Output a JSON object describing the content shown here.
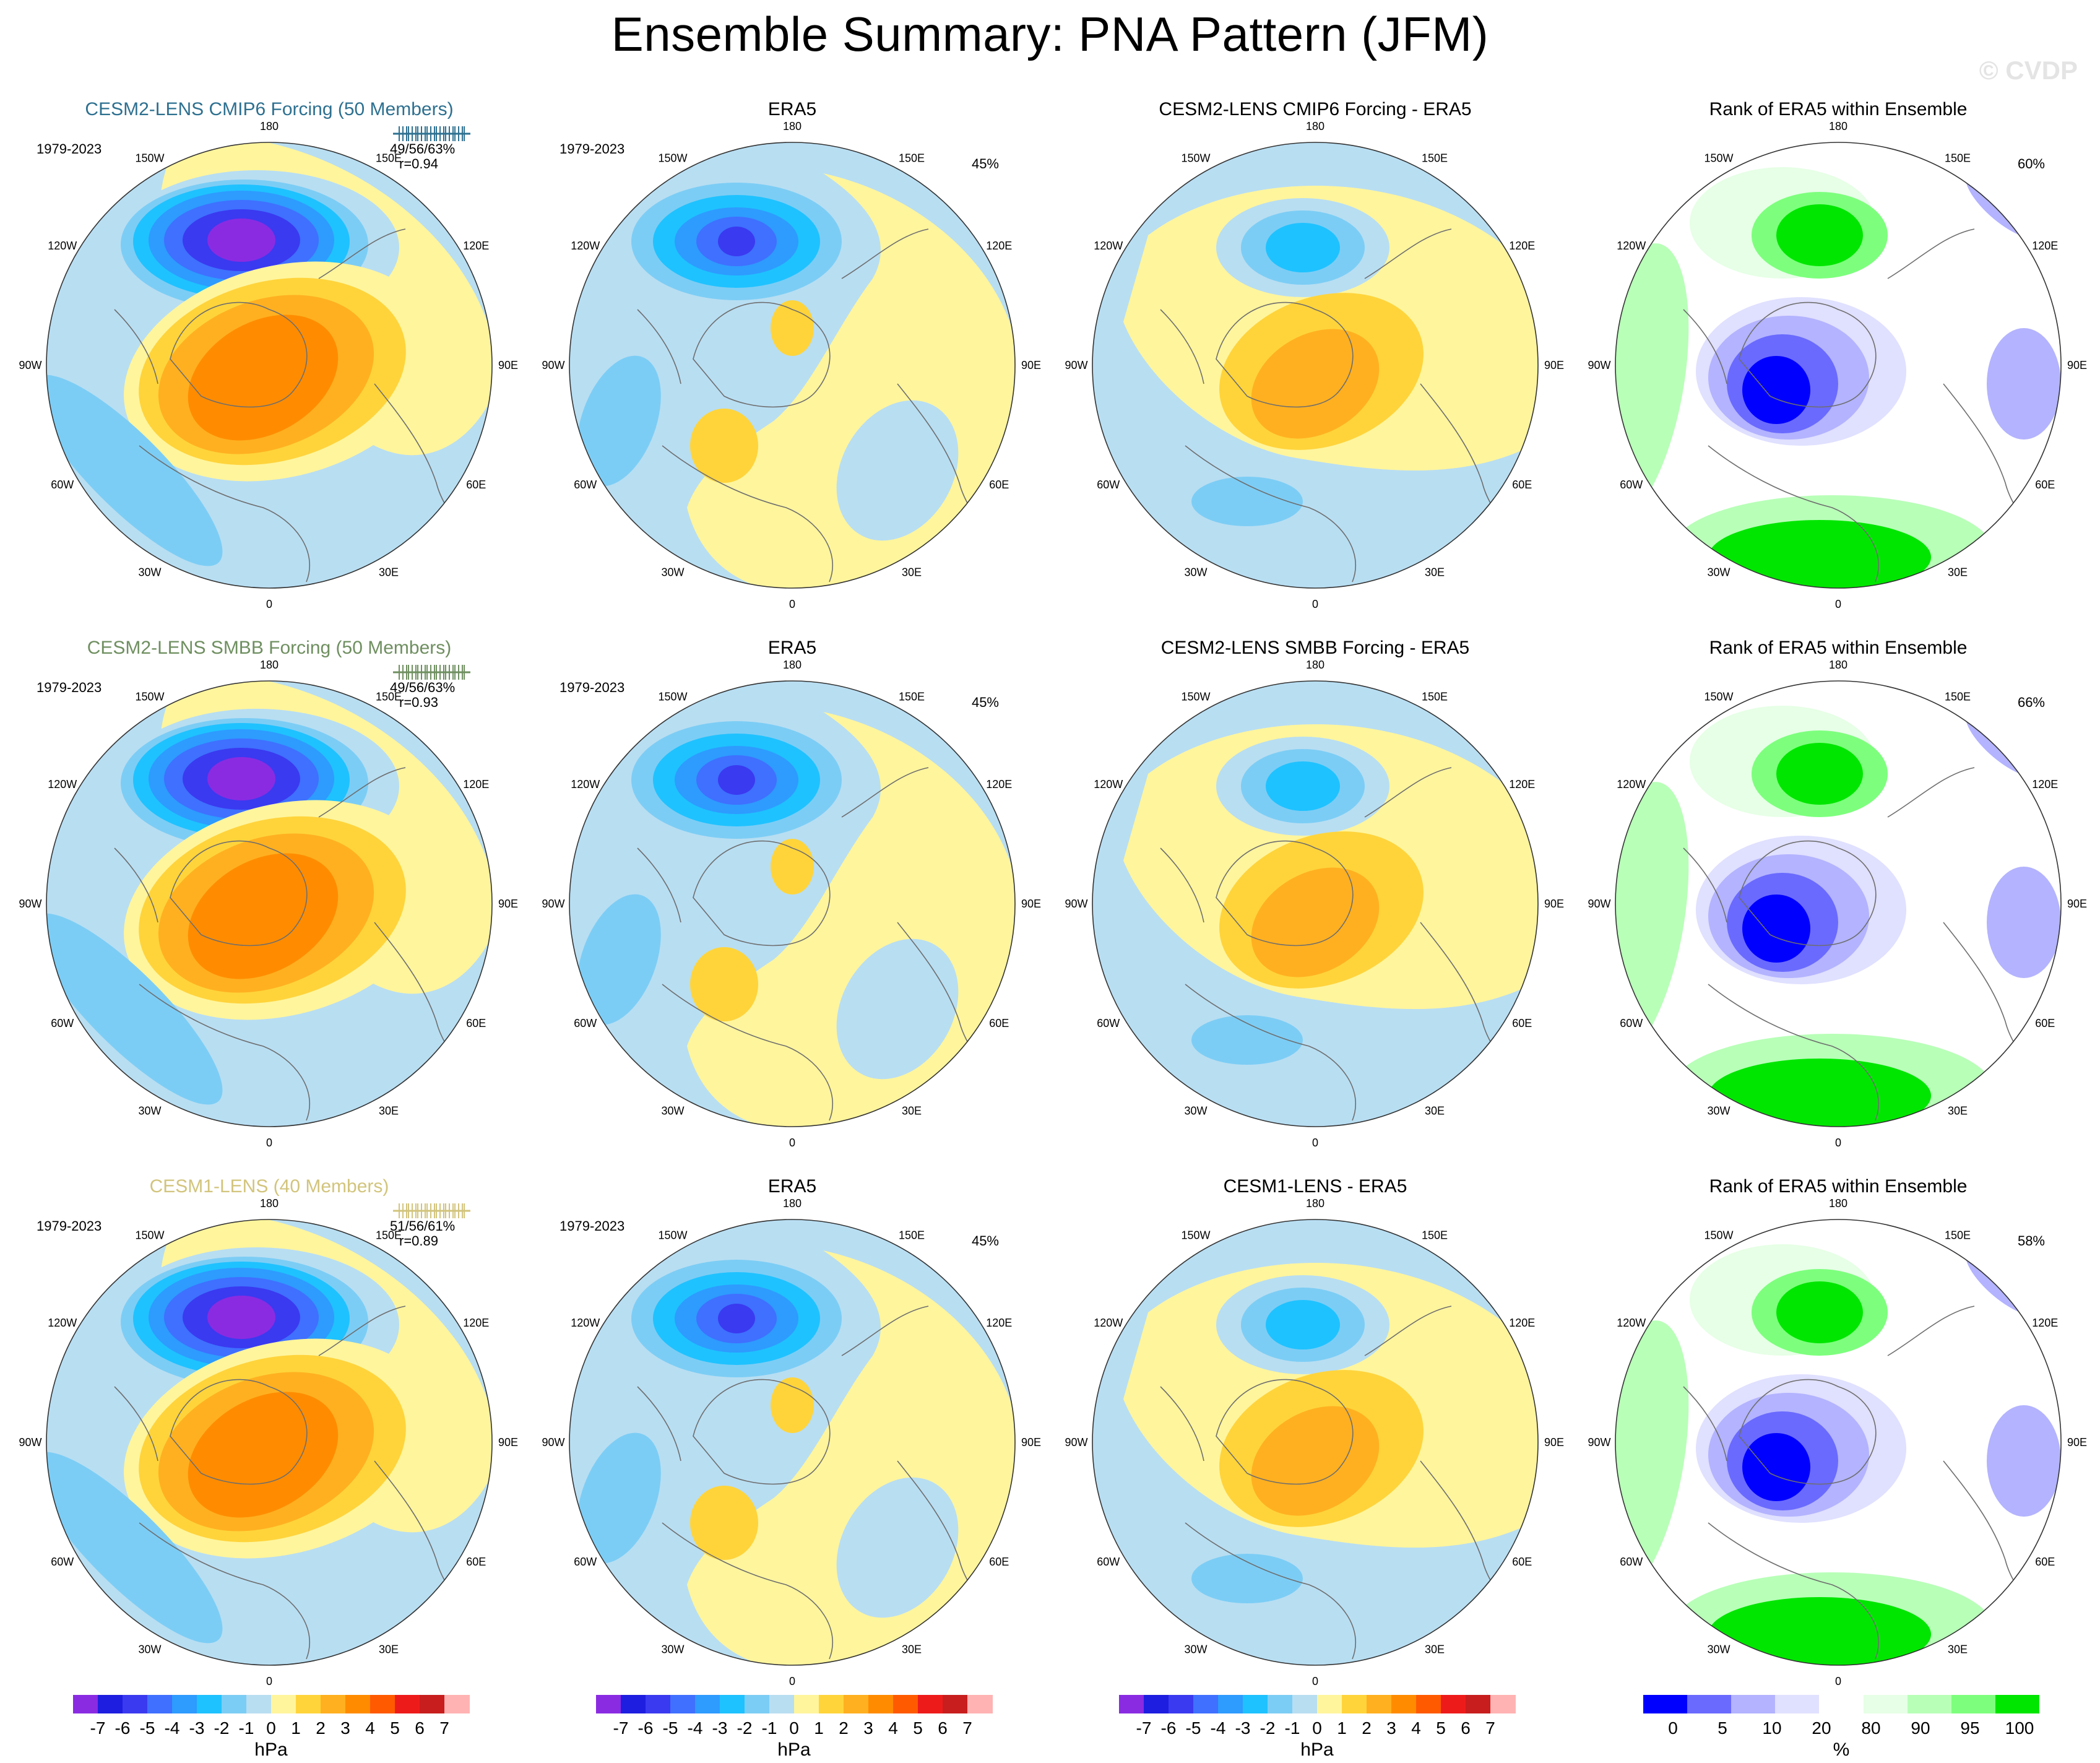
{
  "figure": {
    "title": "Ensemble Summary: PNA Pattern (JFM)",
    "watermark": "© CVDP"
  },
  "labels": {
    "years": "1979-2023",
    "lat_ring": [
      "180",
      "150E",
      "120E",
      "90E",
      "60E",
      "30E",
      "0",
      "30W",
      "60W",
      "90W",
      "120W",
      "150W"
    ]
  },
  "rows": [
    {
      "model": {
        "title": "CESM2-LENS CMIP6 Forcing (50 Members)",
        "color": "#2e7090",
        "stat_pct": "49/56/63%",
        "stat_r": "r=0.94"
      },
      "obs": {
        "title": "ERA5",
        "pct": "45%"
      },
      "diff": {
        "title": "CESM2-LENS CMIP6 Forcing - ERA5"
      },
      "rank": {
        "title": "Rank of ERA5 within Ensemble",
        "pct": "60%"
      }
    },
    {
      "model": {
        "title": "CESM2-LENS SMBB Forcing (50 Members)",
        "color": "#6f8f60",
        "stat_pct": "49/56/63%",
        "stat_r": "r=0.93"
      },
      "obs": {
        "title": "ERA5",
        "pct": "45%"
      },
      "diff": {
        "title": "CESM2-LENS SMBB Forcing - ERA5"
      },
      "rank": {
        "title": "Rank of ERA5 within Ensemble",
        "pct": "66%"
      }
    },
    {
      "model": {
        "title": "CESM1-LENS (40 Members)",
        "color": "#d2c47c",
        "stat_pct": "51/56/61%",
        "stat_r": "r=0.89"
      },
      "obs": {
        "title": "ERA5",
        "pct": "45%"
      },
      "diff": {
        "title": "CESM1-LENS - ERA5"
      },
      "rank": {
        "title": "Rank of ERA5 within Ensemble",
        "pct": "58%"
      }
    }
  ],
  "colorbars": {
    "hpa": {
      "unit": "hPa",
      "colors": [
        "#8a2be2",
        "#1e1ee0",
        "#3a3af0",
        "#3f70ff",
        "#2e9bff",
        "#1ec2ff",
        "#7ccdf5",
        "#b8def2",
        "#fff59d",
        "#ffd43b",
        "#ffb020",
        "#ff8c00",
        "#ff5a00",
        "#ee1b1b",
        "#c81e1e",
        "#ffb3b3"
      ],
      "ticks": [
        "-7",
        "-6",
        "-5",
        "-4",
        "-3",
        "-2",
        "-1",
        "0",
        "1",
        "2",
        "3",
        "4",
        "5",
        "6",
        "7"
      ]
    },
    "rank": {
      "unit": "%",
      "colors": [
        "#0000ff",
        "#6a6aff",
        "#b3b3ff",
        "#e0e0ff",
        "#ffffff",
        "#e6ffe6",
        "#b8ffb8",
        "#7dff7d",
        "#00e600"
      ],
      "ticks": [
        "0",
        "5",
        "10",
        "20",
        "80",
        "90",
        "95",
        "100"
      ]
    }
  }
}
